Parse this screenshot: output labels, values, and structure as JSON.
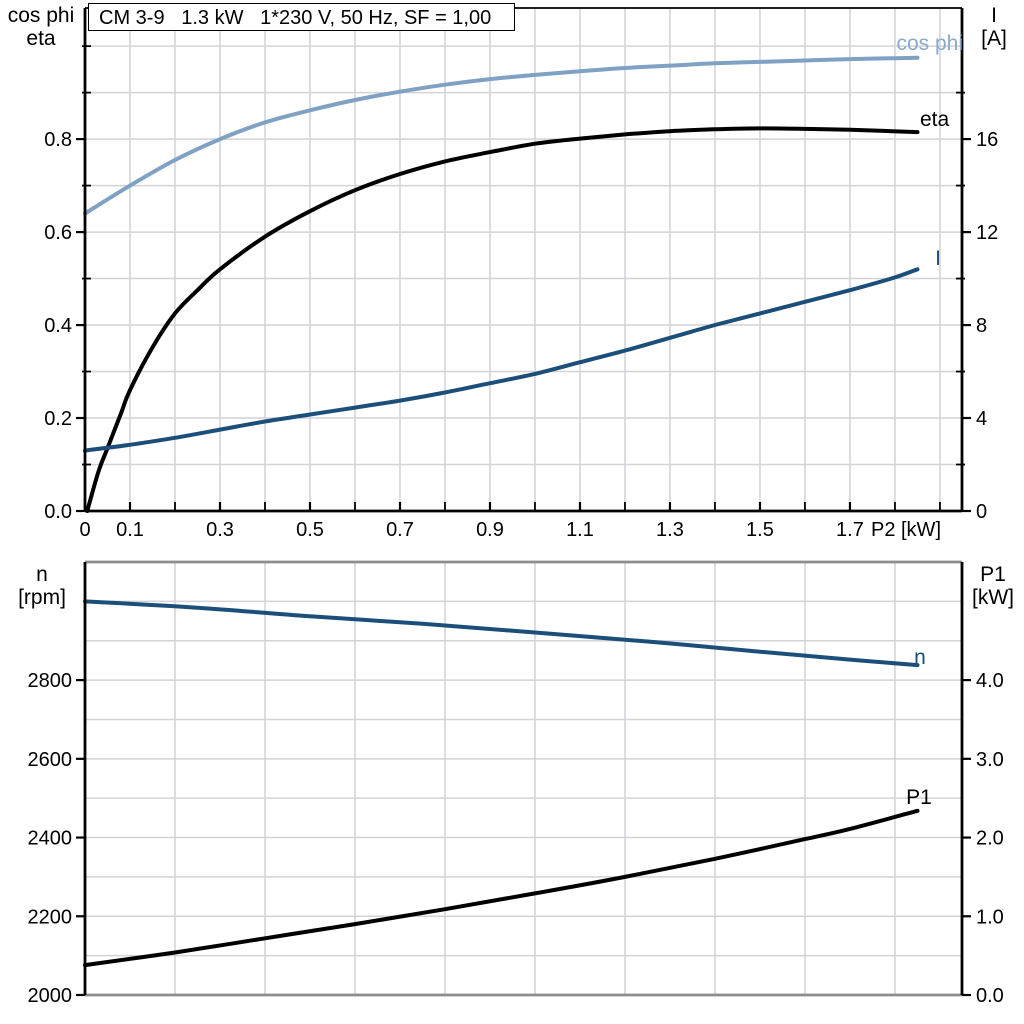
{
  "title": "CM 3-9   1.3 kW   1*230 V, 50 Hz, SF = 1,00",
  "colors": {
    "light_blue": "#7fa1c4",
    "light_blue_label": "#8aa9cc",
    "dark_blue": "#1b4e79",
    "black": "#000000",
    "grid": "#d2d2d7",
    "frame_gray": "#8c8c8c"
  },
  "chart_data": [
    {
      "type": "line",
      "panel": "top",
      "x_axis": {
        "label": "P2 [kW]",
        "min": 0,
        "max": 1.949,
        "tick_values": [
          0,
          0.1,
          0.3,
          0.5,
          0.7,
          0.9,
          1.1,
          1.3,
          1.5,
          1.7
        ],
        "tick_labels": [
          "0",
          "0.1",
          "0.3",
          "0.5",
          "0.7",
          "0.9",
          "1.1",
          "1.3",
          "1.5",
          "1.7"
        ],
        "minor_tick_values": [
          0.2,
          0.4,
          0.6,
          0.8,
          1.0,
          1.2,
          1.4,
          1.6,
          1.8,
          1.9
        ],
        "grid_step": 0.1
      },
      "y_left": {
        "label_lines": [
          "cos phi",
          "eta"
        ],
        "min": 0,
        "max": 1.082,
        "tick_values": [
          0.0,
          0.2,
          0.4,
          0.6,
          0.8
        ],
        "tick_labels": [
          "0.0",
          "0.2",
          "0.4",
          "0.6",
          "0.8"
        ],
        "minor_tick_values": [
          0.1,
          0.3,
          0.5,
          0.7,
          0.9,
          1.0
        ],
        "grid_step": 0.1
      },
      "y_right": {
        "label_lines": [
          "I",
          "[A]"
        ],
        "min": 0,
        "max": 21.64,
        "tick_values": [
          0,
          4,
          8,
          12,
          16
        ],
        "tick_labels": [
          "0",
          "4",
          "8",
          "12",
          "16"
        ],
        "minor_tick_values": [
          2,
          6,
          10,
          14,
          18
        ]
      },
      "series": [
        {
          "name": "cos phi",
          "axis": "left",
          "color_key": "light_blue",
          "label_color_key": "light_blue_label",
          "points": [
            [
              0,
              0.64
            ],
            [
              0.1,
              0.7
            ],
            [
              0.2,
              0.755
            ],
            [
              0.3,
              0.8
            ],
            [
              0.4,
              0.836
            ],
            [
              0.5,
              0.862
            ],
            [
              0.6,
              0.884
            ],
            [
              0.7,
              0.902
            ],
            [
              0.8,
              0.917
            ],
            [
              0.9,
              0.929
            ],
            [
              1.0,
              0.938
            ],
            [
              1.1,
              0.946
            ],
            [
              1.2,
              0.953
            ],
            [
              1.3,
              0.958
            ],
            [
              1.4,
              0.963
            ],
            [
              1.5,
              0.966
            ],
            [
              1.6,
              0.969
            ],
            [
              1.7,
              0.972
            ],
            [
              1.8,
              0.974
            ],
            [
              1.85,
              0.975
            ]
          ]
        },
        {
          "name": "eta",
          "axis": "left",
          "color_key": "black",
          "label_color_key": "black",
          "points": [
            [
              0.005,
              0.0
            ],
            [
              0.03,
              0.085
            ],
            [
              0.05,
              0.135
            ],
            [
              0.08,
              0.21
            ],
            [
              0.1,
              0.26
            ],
            [
              0.15,
              0.352
            ],
            [
              0.2,
              0.425
            ],
            [
              0.25,
              0.475
            ],
            [
              0.3,
              0.52
            ],
            [
              0.4,
              0.59
            ],
            [
              0.5,
              0.645
            ],
            [
              0.6,
              0.69
            ],
            [
              0.7,
              0.725
            ],
            [
              0.8,
              0.752
            ],
            [
              0.9,
              0.772
            ],
            [
              1.0,
              0.79
            ],
            [
              1.1,
              0.801
            ],
            [
              1.2,
              0.81
            ],
            [
              1.3,
              0.817
            ],
            [
              1.4,
              0.821
            ],
            [
              1.5,
              0.823
            ],
            [
              1.6,
              0.822
            ],
            [
              1.7,
              0.82
            ],
            [
              1.85,
              0.815
            ]
          ]
        },
        {
          "name": "I",
          "axis": "right",
          "color_key": "dark_blue",
          "label_color_key": "dark_blue",
          "points": [
            [
              0,
              2.6
            ],
            [
              0.1,
              2.85
            ],
            [
              0.2,
              3.15
            ],
            [
              0.3,
              3.5
            ],
            [
              0.4,
              3.85
            ],
            [
              0.5,
              4.15
            ],
            [
              0.6,
              4.45
            ],
            [
              0.7,
              4.75
            ],
            [
              0.8,
              5.1
            ],
            [
              0.9,
              5.5
            ],
            [
              1.0,
              5.9
            ],
            [
              1.1,
              6.4
            ],
            [
              1.2,
              6.9
            ],
            [
              1.3,
              7.45
            ],
            [
              1.4,
              8.0
            ],
            [
              1.5,
              8.5
            ],
            [
              1.6,
              9.0
            ],
            [
              1.7,
              9.5
            ],
            [
              1.8,
              10.05
            ],
            [
              1.85,
              10.4
            ]
          ]
        }
      ]
    },
    {
      "type": "line",
      "panel": "bottom",
      "x_axis": {
        "label": "",
        "min": 0,
        "max": 1.949,
        "tick_values": [],
        "tick_labels": [],
        "minor_tick_values": [],
        "grid_step": 0.2
      },
      "y_left": {
        "label_lines": [
          "n",
          "[rpm]"
        ],
        "min": 2000,
        "max": 3100,
        "tick_values": [
          2000,
          2200,
          2400,
          2600,
          2800
        ],
        "tick_labels": [
          "2000",
          "2200",
          "2400",
          "2600",
          "2800"
        ],
        "minor_tick_values": [],
        "grid_step": 100
      },
      "y_right": {
        "label_lines": [
          "P1",
          "[kW]"
        ],
        "min": 0,
        "max": 5.5,
        "tick_values": [
          0,
          1,
          2,
          3,
          4
        ],
        "tick_labels": [
          "0.0",
          "1.0",
          "2.0",
          "3.0",
          "4.0"
        ],
        "minor_tick_values": []
      },
      "series": [
        {
          "name": "n",
          "axis": "left",
          "color_key": "dark_blue",
          "label_color_key": "dark_blue",
          "points": [
            [
              0,
              3000
            ],
            [
              0.25,
              2984
            ],
            [
              0.5,
              2962
            ],
            [
              0.75,
              2943
            ],
            [
              1.0,
              2921
            ],
            [
              1.25,
              2898
            ],
            [
              1.5,
              2872
            ],
            [
              1.7,
              2852
            ],
            [
              1.85,
              2838
            ]
          ]
        },
        {
          "name": "P1",
          "axis": "right",
          "color_key": "black",
          "label_color_key": "black",
          "points": [
            [
              0,
              0.38
            ],
            [
              0.2,
              0.54
            ],
            [
              0.4,
              0.72
            ],
            [
              0.6,
              0.9
            ],
            [
              0.8,
              1.09
            ],
            [
              1.0,
              1.29
            ],
            [
              1.2,
              1.5
            ],
            [
              1.4,
              1.73
            ],
            [
              1.6,
              1.98
            ],
            [
              1.7,
              2.11
            ],
            [
              1.85,
              2.34
            ]
          ]
        }
      ]
    }
  ]
}
